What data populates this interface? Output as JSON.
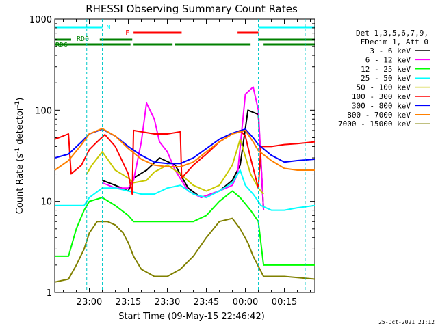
{
  "chart_data": {
    "type": "line",
    "title": "RHESSI Observing Summary Count Rates",
    "xlabel": "Start Time (09-May-15 22:46:42)",
    "ylabel_prefix": "Count Rate (s",
    "ylabel_sup": "-1",
    "ylabel_suffix": " detector",
    "ylabel_close": ")",
    "yscale": "log",
    "ylim": [
      1,
      1000
    ],
    "xlim": [
      "22:46:42",
      "00:26:42"
    ],
    "y_ticks": [
      "1",
      "10",
      "100",
      "1000"
    ],
    "x_ticks": [
      "23:00",
      "23:15",
      "23:30",
      "23:45",
      "00:00",
      "00:15"
    ],
    "legend_header": [
      "Det 1,3,5,6,7,9,",
      "FDecim 1, Att 0"
    ],
    "footer": "25-Oct-2021 21:12",
    "flags": {
      "night_label": "N",
      "flare_label": "F",
      "rd0_label": "RD0",
      "rd6_label": "RD6"
    },
    "flag_colors": {
      "night": "#00ffff",
      "flare": "#ff0000",
      "rd0": "#008000",
      "rd6": "#008000"
    },
    "flag_intervals": {
      "night": [
        [
          "22:46:42",
          "23:05:00"
        ],
        [
          "00:05:00",
          "00:26:42"
        ]
      ],
      "flare": [
        [
          "23:17:00",
          "23:35:30"
        ],
        [
          "23:57:00",
          "00:05:00"
        ]
      ],
      "rd0": [
        [
          "22:46:42",
          "22:53:00"
        ],
        [
          "23:04:00",
          "23:16:30"
        ],
        [
          "00:05:00",
          "00:26:42"
        ]
      ],
      "rd6": [
        [
          "22:46:42",
          "23:15:50"
        ],
        [
          "23:17:00",
          "23:32:00"
        ],
        [
          "23:33:00",
          "00:02:00"
        ],
        [
          "00:07:00",
          "00:26:42"
        ]
      ]
    },
    "night_markers": [
      "22:59:00",
      "23:05:00",
      "00:05:00",
      "00:23:00"
    ],
    "series": [
      {
        "name": "3 - 6 keV",
        "color": "#000000",
        "x": [
          "22:52",
          "22:59",
          "23:05",
          "23:10",
          "23:15",
          "23:17",
          "23:22",
          "23:27",
          "23:33",
          "23:38",
          "23:43",
          "23:50",
          "23:55",
          "23:58",
          "24:01",
          "24:05",
          "24:07",
          "24:12",
          "24:20"
        ],
        "y": [
          null,
          null,
          17,
          15,
          13,
          18,
          22,
          30,
          25,
          14,
          11,
          13,
          17,
          25,
          100,
          90,
          8,
          null,
          null
        ]
      },
      {
        "name": "6 - 12 keV",
        "color": "#ff00ff",
        "x": [
          "22:52",
          "22:59",
          "23:05",
          "23:10",
          "23:15",
          "23:17",
          "23:20",
          "23:22",
          "23:25",
          "23:27",
          "23:30",
          "23:33",
          "23:38",
          "23:43",
          "23:50",
          "23:55",
          "23:57",
          "24:00",
          "24:03",
          "24:05",
          "24:07"
        ],
        "y": [
          null,
          null,
          16,
          14,
          14,
          17,
          45,
          120,
          80,
          45,
          35,
          22,
          13,
          11,
          13,
          15,
          20,
          150,
          180,
          100,
          8
        ]
      },
      {
        "name": "12 - 25 keV",
        "color": "#00ff00",
        "x": [
          "22:46:42",
          "22:52",
          "22:55",
          "22:58",
          "23:00",
          "23:05",
          "23:10",
          "23:15",
          "23:17",
          "23:22",
          "23:30",
          "23:35",
          "23:40",
          "23:45",
          "23:50",
          "23:55",
          "23:58",
          "24:02",
          "24:05",
          "24:07",
          "24:12",
          "24:18",
          "24:26:42"
        ],
        "y": [
          2.5,
          2.5,
          5,
          8,
          10,
          11,
          9,
          7,
          6,
          6,
          6,
          6,
          6,
          7,
          10,
          13,
          11,
          8,
          6,
          2,
          2,
          2,
          2
        ]
      },
      {
        "name": "25 - 50 keV",
        "color": "#00ffff",
        "x": [
          "22:46:42",
          "22:55",
          "22:58",
          "23:00",
          "23:05",
          "23:10",
          "23:15",
          "23:20",
          "23:25",
          "23:30",
          "23:35",
          "23:40",
          "23:45",
          "23:50",
          "23:55",
          "23:58",
          "24:00",
          "24:03",
          "24:05",
          "24:06",
          "24:10",
          "24:15",
          "24:20",
          "24:26:42"
        ],
        "y": [
          9,
          9,
          9,
          11,
          14,
          14,
          13,
          12,
          12,
          14,
          15,
          12,
          11,
          13,
          16,
          22,
          15,
          12,
          10,
          9,
          8,
          8,
          8.5,
          9
        ]
      },
      {
        "name": "50 - 100 keV",
        "color": "#c8c800",
        "x": [
          "22:59",
          "23:01",
          "23:05",
          "23:10",
          "23:15",
          "23:17",
          "23:22",
          "23:25",
          "23:30",
          "23:35",
          "23:40",
          "23:45",
          "23:50",
          "23:55",
          "23:58",
          "24:02",
          "24:05",
          "24:07",
          "24:12"
        ],
        "y": [
          20,
          25,
          35,
          22,
          18,
          16,
          17,
          21,
          25,
          20,
          15,
          13,
          15,
          25,
          48,
          20,
          14,
          12,
          null
        ]
      },
      {
        "name": "100 - 300 keV",
        "color": "#ff0000",
        "x": [
          "22:46:42",
          "22:52",
          "22:53",
          "22:57",
          "23:00",
          "23:03",
          "23:06",
          "23:10",
          "23:15",
          "23:16:30",
          "23:17",
          "23:25",
          "23:30",
          "23:35",
          "23:35:30",
          "23:40",
          "23:45",
          "23:50",
          "23:55",
          "23:58",
          "24:00",
          "24:02",
          "24:05",
          "24:06",
          "24:10",
          "24:15",
          "24:20",
          "24:26:42"
        ],
        "y": [
          48,
          55,
          20,
          25,
          37,
          45,
          54,
          40,
          20,
          12,
          60,
          55,
          55,
          58,
          18,
          25,
          33,
          45,
          55,
          60,
          52,
          30,
          14,
          40,
          40,
          42,
          43,
          45
        ]
      },
      {
        "name": "300 - 800 keV",
        "color": "#0000ff",
        "x": [
          "22:46:42",
          "22:52",
          "22:57",
          "23:00",
          "23:05",
          "23:10",
          "23:15",
          "23:20",
          "23:25",
          "23:30",
          "23:35",
          "23:40",
          "23:45",
          "23:50",
          "23:55",
          "24:00",
          "24:03",
          "24:05",
          "24:10",
          "24:15",
          "24:20",
          "24:26:42"
        ],
        "y": [
          30,
          33,
          45,
          55,
          62,
          52,
          40,
          32,
          27,
          26,
          26,
          30,
          38,
          48,
          56,
          62,
          50,
          42,
          32,
          27,
          28,
          29
        ]
      },
      {
        "name": "800 - 7000 keV",
        "color": "#ff8000",
        "x": [
          "22:46:42",
          "22:52",
          "22:57",
          "23:00",
          "23:05",
          "23:10",
          "23:15",
          "23:20",
          "23:25",
          "23:30",
          "23:35",
          "23:40",
          "23:45",
          "23:50",
          "23:55",
          "24:00",
          "24:03",
          "24:05",
          "24:10",
          "24:15",
          "24:20",
          "24:26:42"
        ],
        "y": [
          22,
          28,
          42,
          55,
          63,
          52,
          38,
          29,
          25,
          24,
          24,
          27,
          35,
          45,
          55,
          60,
          45,
          36,
          28,
          23,
          22,
          22
        ]
      },
      {
        "name": "7000 - 15000 keV",
        "color": "#808000",
        "x": [
          "22:46:42",
          "22:52",
          "22:55",
          "22:58",
          "23:00",
          "23:03",
          "23:07",
          "23:10",
          "23:13",
          "23:15",
          "23:17",
          "23:20",
          "23:25",
          "23:30",
          "23:35",
          "23:40",
          "23:45",
          "23:50",
          "23:55",
          "23:58",
          "24:01",
          "24:03",
          "24:07",
          "24:15",
          "24:26:42"
        ],
        "y": [
          1.3,
          1.4,
          2,
          3,
          4.5,
          6,
          6,
          5.5,
          4.5,
          3.5,
          2.5,
          1.8,
          1.5,
          1.5,
          1.8,
          2.5,
          4,
          6,
          6.5,
          5,
          3.5,
          2.5,
          1.5,
          1.5,
          1.4
        ]
      }
    ]
  }
}
